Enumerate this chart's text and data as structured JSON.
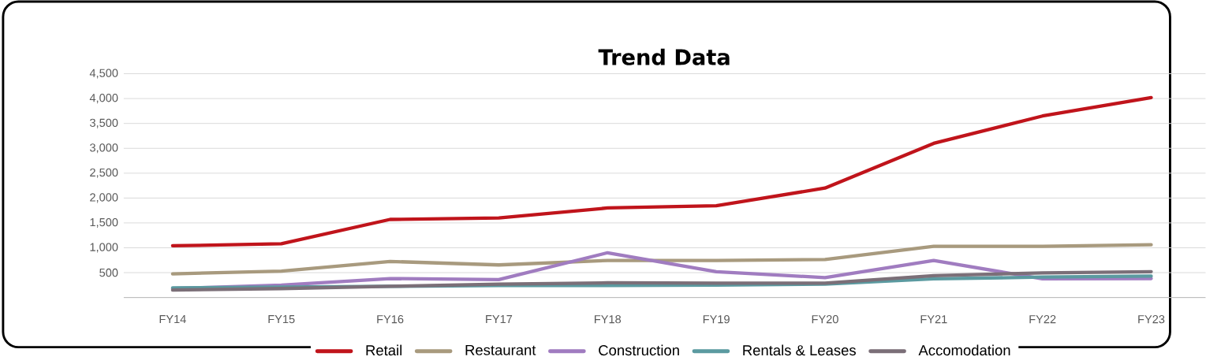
{
  "chart_data": {
    "type": "line",
    "title": "Trend Data",
    "categories": [
      "FY14",
      "FY15",
      "FY16",
      "FY17",
      "FY18",
      "FY19",
      "FY20",
      "FY21",
      "FY22",
      "FY23"
    ],
    "series": [
      {
        "name": "Retail",
        "color": "#c0141b",
        "values": [
          1040,
          1080,
          1570,
          1600,
          1800,
          1845,
          2200,
          3100,
          3650,
          4020
        ]
      },
      {
        "name": "Restaurant",
        "color": "#a89a7e",
        "values": [
          475,
          530,
          725,
          655,
          745,
          745,
          765,
          1030,
          1030,
          1060
        ]
      },
      {
        "name": "Construction",
        "color": "#a07cc0",
        "values": [
          180,
          250,
          380,
          360,
          900,
          520,
          400,
          745,
          375,
          380
        ]
      },
      {
        "name": "Rentals & Leases",
        "color": "#5b9aa0",
        "values": [
          195,
          210,
          225,
          240,
          240,
          250,
          270,
          375,
          410,
          430
        ]
      },
      {
        "name": "Accomodation",
        "color": "#7b6f78",
        "values": [
          150,
          180,
          225,
          270,
          295,
          290,
          290,
          440,
          495,
          520
        ]
      }
    ],
    "ylim": [
      0,
      4500
    ],
    "yticks": [
      {
        "value": 500,
        "label": "500"
      },
      {
        "value": 1000,
        "label": "1,000"
      },
      {
        "value": 1500,
        "label": "1,500"
      },
      {
        "value": 2000,
        "label": "2,000"
      },
      {
        "value": 2500,
        "label": "2,500"
      },
      {
        "value": 3000,
        "label": "3,000"
      },
      {
        "value": 3500,
        "label": "3,500"
      },
      {
        "value": 4000,
        "label": "4,000"
      },
      {
        "value": 4500,
        "label": "4,500"
      }
    ],
    "grid": "y",
    "legend": "bottom",
    "marker": "none",
    "line_style": "solid"
  }
}
